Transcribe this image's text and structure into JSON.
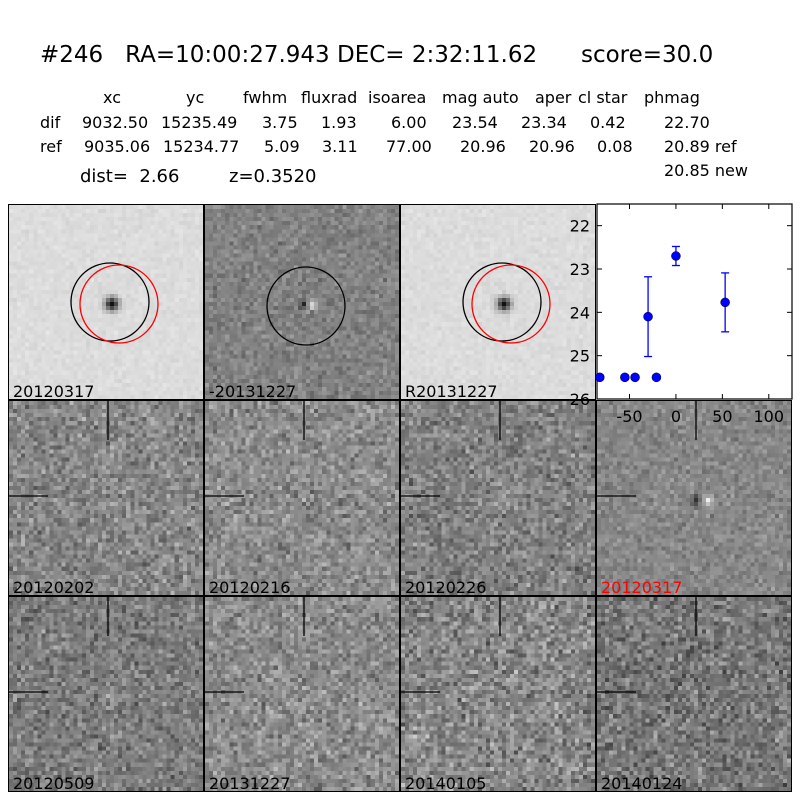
{
  "header": {
    "title": "#246   RA=10:00:27.943 DEC= 2:32:11.62      score=30.0",
    "columns": [
      "xc",
      "yc",
      "fwhm",
      "fluxrad",
      "isoarea",
      "mag auto",
      "aper",
      "cl star",
      "phmag"
    ],
    "rows": [
      {
        "label": "dif",
        "values": [
          "9032.50",
          "15235.49",
          "3.75",
          "1.93",
          "6.00",
          "23.54",
          "23.34",
          "0.42",
          "22.70"
        ]
      },
      {
        "label": "ref",
        "values": [
          "9035.06",
          "15234.77",
          "5.09",
          "3.11",
          "77.00",
          "20.96",
          "20.96",
          "0.08",
          "20.89 ref"
        ]
      }
    ],
    "phmag_new": "20.85 new",
    "dist": "dist=  2.66",
    "z": "z=0.3520"
  },
  "panels": [
    {
      "label": "20120317",
      "color": "#000000"
    },
    {
      "label": "-20131227",
      "color": "#000000"
    },
    {
      "label": "R20131227",
      "color": "#000000"
    },
    {
      "label": "20120202",
      "color": "#000000"
    },
    {
      "label": "20120216",
      "color": "#000000"
    },
    {
      "label": "20120226",
      "color": "#000000"
    },
    {
      "label": "20120317",
      "color": "#ff0000"
    },
    {
      "label": "20120509",
      "color": "#000000"
    },
    {
      "label": "20131227",
      "color": "#000000"
    },
    {
      "label": "20140105",
      "color": "#000000"
    },
    {
      "label": "20140124",
      "color": "#000000"
    }
  ],
  "chart_data": {
    "type": "scatter",
    "title": "",
    "xlabel": "",
    "ylabel": "",
    "xlim": [
      -85,
      125
    ],
    "ylim": [
      26,
      21.5
    ],
    "y_inverted": true,
    "xticks": [
      -50,
      0,
      50,
      100
    ],
    "yticks": [
      22,
      23,
      24,
      25,
      26
    ],
    "color": "#0000ff",
    "points": [
      {
        "x": -82,
        "y": 25.5,
        "err": 0.05
      },
      {
        "x": -55,
        "y": 25.5,
        "err": 0.05
      },
      {
        "x": -44,
        "y": 25.5,
        "err": 0.05
      },
      {
        "x": -30,
        "y": 24.1,
        "err": 0.92
      },
      {
        "x": -21,
        "y": 25.5,
        "err": 0.05
      },
      {
        "x": 0,
        "y": 22.7,
        "err": 0.22
      },
      {
        "x": 53,
        "y": 23.77,
        "err": 0.68
      }
    ]
  }
}
